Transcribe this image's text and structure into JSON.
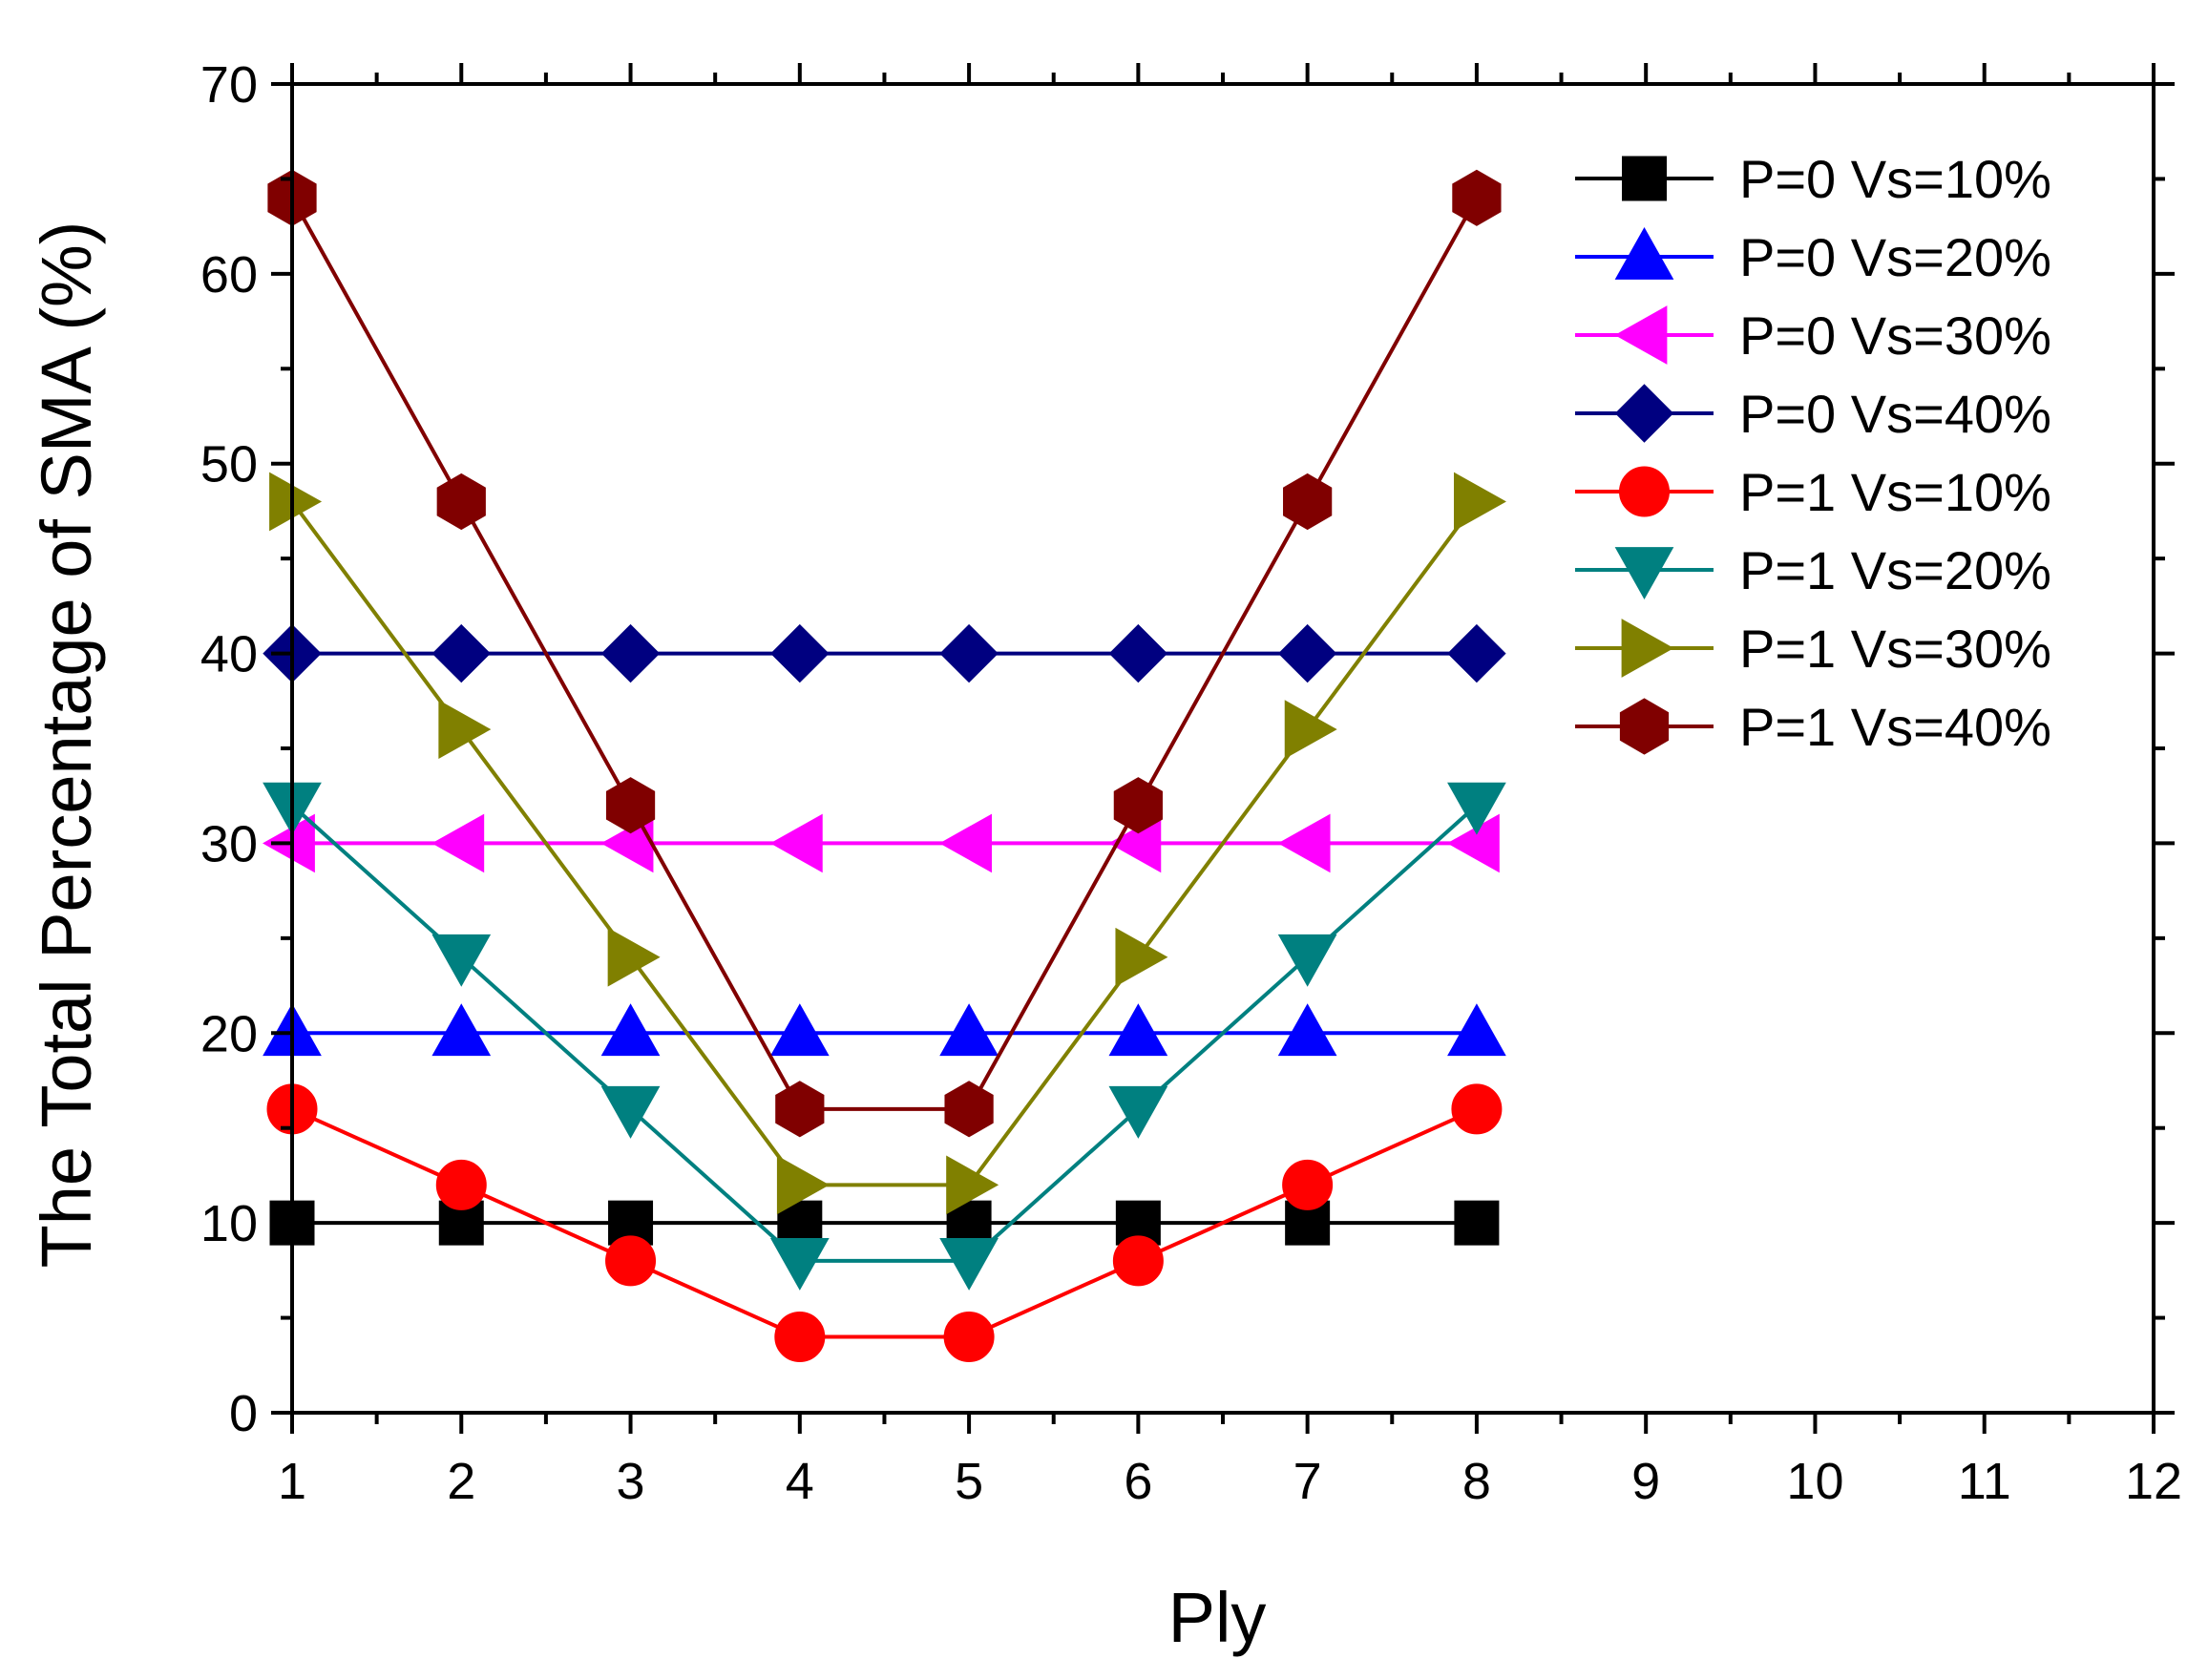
{
  "chart_data": {
    "type": "line",
    "title": "",
    "xlabel": "Ply",
    "ylabel": "The Total Percentage of SMA (%)",
    "xlim": [
      1,
      12
    ],
    "ylim": [
      0,
      70
    ],
    "xticks": [
      1,
      2,
      3,
      4,
      5,
      6,
      7,
      8,
      9,
      10,
      11,
      12
    ],
    "yticks": [
      0,
      10,
      20,
      30,
      40,
      50,
      60,
      70
    ],
    "grid": false,
    "legend_position": "top-right",
    "x": [
      1,
      2,
      3,
      4,
      5,
      6,
      7,
      8
    ],
    "series": [
      {
        "name": "P=0 Vs=10%",
        "color": "#000000",
        "marker": "square",
        "values": [
          10,
          10,
          10,
          10,
          10,
          10,
          10,
          10
        ]
      },
      {
        "name": "P=0 Vs=20%",
        "color": "#0000FF",
        "marker": "triangle-up",
        "values": [
          20,
          20,
          20,
          20,
          20,
          20,
          20,
          20
        ]
      },
      {
        "name": "P=0 Vs=30%",
        "color": "#FF00FF",
        "marker": "triangle-left",
        "values": [
          30,
          30,
          30,
          30,
          30,
          30,
          30,
          30
        ]
      },
      {
        "name": "P=0 Vs=40%",
        "color": "#000080",
        "marker": "diamond",
        "values": [
          40,
          40,
          40,
          40,
          40,
          40,
          40,
          40
        ]
      },
      {
        "name": "P=1 Vs=10%",
        "color": "#FF0000",
        "marker": "circle",
        "values": [
          16,
          12,
          8,
          4,
          4,
          8,
          12,
          16
        ]
      },
      {
        "name": "P=1 Vs=20%",
        "color": "#008080",
        "marker": "triangle-down",
        "values": [
          32,
          24,
          16,
          8,
          8,
          16,
          24,
          32
        ]
      },
      {
        "name": "P=1 Vs=30%",
        "color": "#808000",
        "marker": "triangle-right",
        "values": [
          48,
          36,
          24,
          12,
          12,
          24,
          36,
          48
        ]
      },
      {
        "name": "P=1 Vs=40%",
        "color": "#800000",
        "marker": "hexagon",
        "values": [
          64,
          48,
          32,
          16,
          16,
          32,
          48,
          64
        ]
      }
    ]
  }
}
